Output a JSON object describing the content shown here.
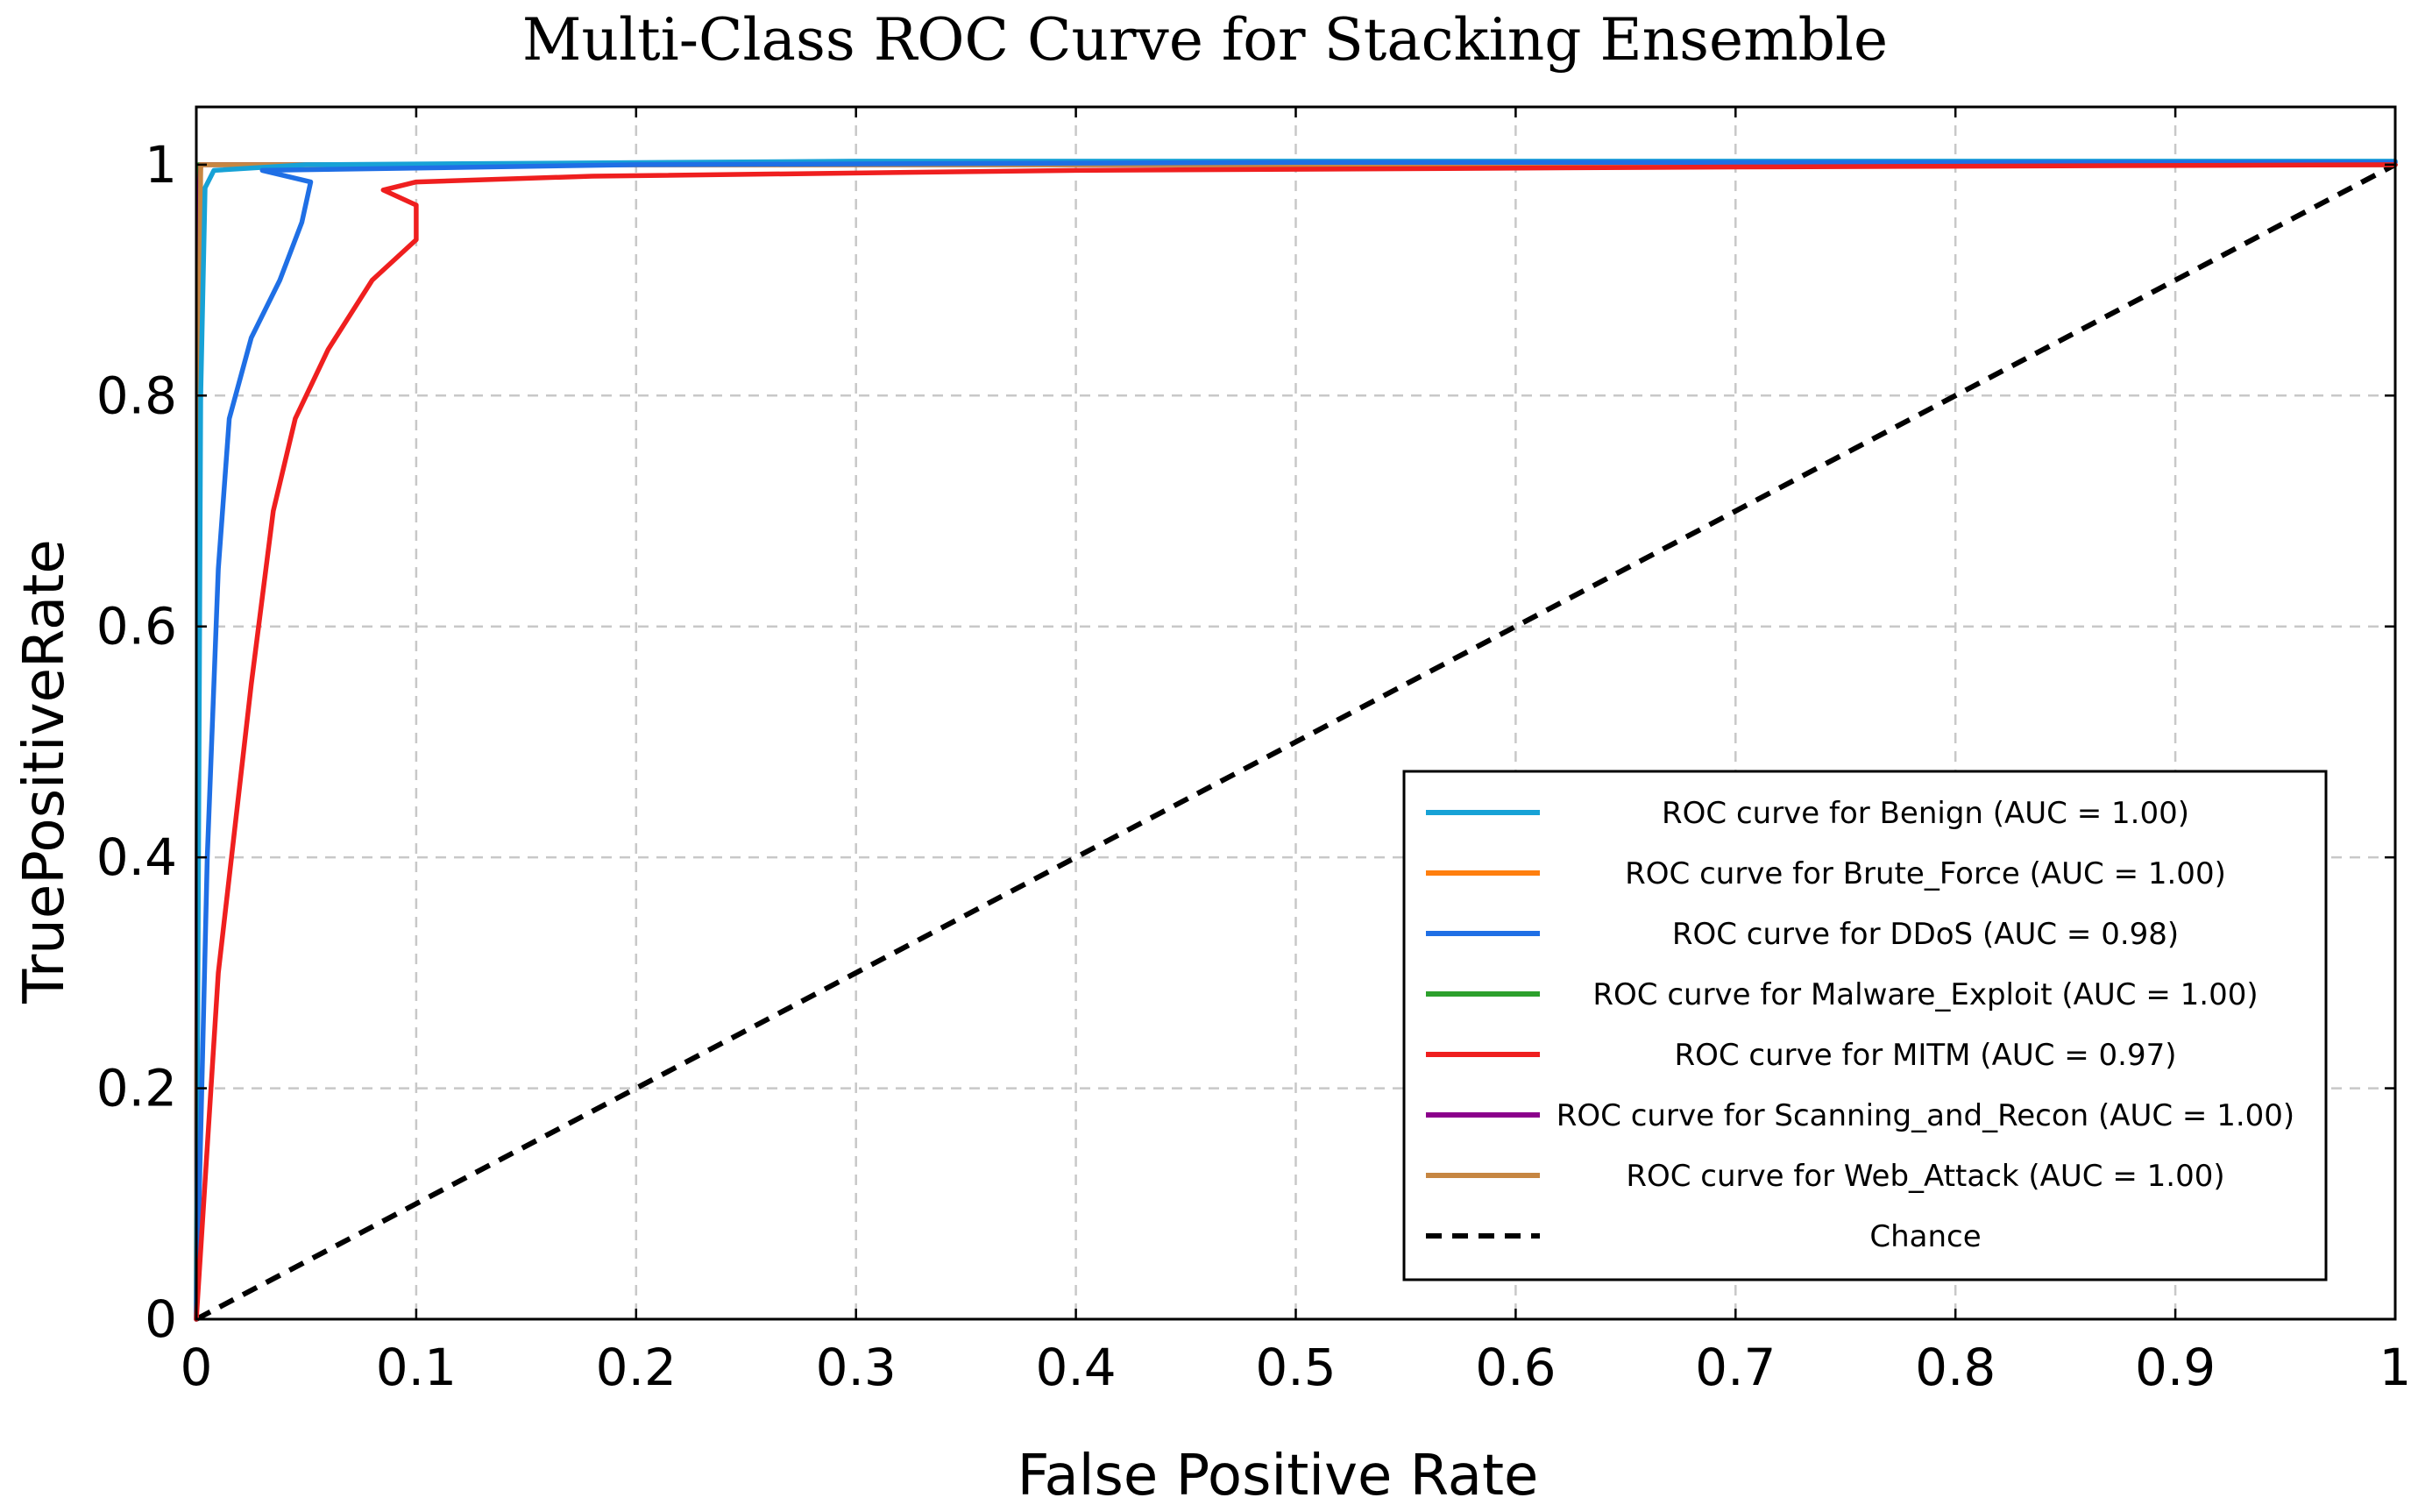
{
  "chart_data": {
    "type": "line",
    "title": "Multi-Class ROC Curve for Stacking Ensemble",
    "xlabel": "False Positive Rate",
    "ylabel": "TruePositiveRate",
    "xlim": [
      0,
      1
    ],
    "ylim": [
      0,
      1.05
    ],
    "grid": true,
    "legend_position": "lower-right",
    "x_ticks": [
      {
        "value": 0,
        "label": "0"
      },
      {
        "value": 0.1,
        "label": "0.1"
      },
      {
        "value": 0.2,
        "label": "0.2"
      },
      {
        "value": 0.3,
        "label": "0.3"
      },
      {
        "value": 0.4,
        "label": "0.4"
      },
      {
        "value": 0.5,
        "label": "0.5"
      },
      {
        "value": 0.6,
        "label": "0.6"
      },
      {
        "value": 0.7,
        "label": "0.7"
      },
      {
        "value": 0.8,
        "label": "0.8"
      },
      {
        "value": 0.9,
        "label": "0.9"
      },
      {
        "value": 1,
        "label": "1"
      }
    ],
    "y_ticks": [
      {
        "value": 0,
        "label": "0"
      },
      {
        "value": 0.2,
        "label": "0.2"
      },
      {
        "value": 0.4,
        "label": "0.4"
      },
      {
        "value": 0.6,
        "label": "0.6"
      },
      {
        "value": 0.8,
        "label": "0.8"
      },
      {
        "value": 1,
        "label": "1"
      }
    ],
    "series": [
      {
        "name": "ROC curve for Benign (AUC = 1.00)",
        "color": "#17a2d6",
        "dashed": false,
        "points": [
          [
            0,
            0
          ],
          [
            0.002,
            0.8
          ],
          [
            0.004,
            0.98
          ],
          [
            0.008,
            0.995
          ],
          [
            0.05,
            1.0
          ],
          [
            0.3,
            1.003
          ],
          [
            0.65,
            1.003
          ],
          [
            0.95,
            1.003
          ],
          [
            1,
            1.003
          ]
        ]
      },
      {
        "name": "ROC curve for Brute_Force (AUC = 1.00)",
        "color": "#ff7f0e",
        "dashed": false,
        "points": [
          [
            0,
            0
          ],
          [
            0.001,
            0.9
          ],
          [
            0.002,
            1.0
          ],
          [
            0.3,
            1.0
          ],
          [
            1,
            1.0
          ]
        ]
      },
      {
        "name": "ROC curve for DDoS (AUC = 0.98)",
        "color": "#1f6fe5",
        "dashed": false,
        "points": [
          [
            0,
            0
          ],
          [
            0.005,
            0.4
          ],
          [
            0.01,
            0.65
          ],
          [
            0.015,
            0.78
          ],
          [
            0.025,
            0.85
          ],
          [
            0.038,
            0.9
          ],
          [
            0.048,
            0.95
          ],
          [
            0.052,
            0.985
          ],
          [
            0.03,
            0.995
          ],
          [
            0.2,
            1.0
          ],
          [
            0.5,
            1.002
          ],
          [
            1,
            1.002
          ]
        ]
      },
      {
        "name": "ROC curve for Malware_Exploit (AUC = 1.00)",
        "color": "#2ca02c",
        "dashed": false,
        "points": [
          [
            0,
            0
          ],
          [
            0.001,
            1.0
          ],
          [
            1,
            1.0
          ]
        ]
      },
      {
        "name": "ROC curve for MITM (AUC = 0.97)",
        "color": "#ef1f1f",
        "dashed": false,
        "points": [
          [
            0,
            0
          ],
          [
            0.01,
            0.3
          ],
          [
            0.025,
            0.55
          ],
          [
            0.035,
            0.7
          ],
          [
            0.045,
            0.78
          ],
          [
            0.06,
            0.84
          ],
          [
            0.08,
            0.9
          ],
          [
            0.1,
            0.935
          ],
          [
            0.1,
            0.965
          ],
          [
            0.085,
            0.978
          ],
          [
            0.1,
            0.985
          ],
          [
            0.18,
            0.99
          ],
          [
            0.4,
            0.995
          ],
          [
            0.7,
            0.998
          ],
          [
            1,
            1.0
          ]
        ]
      },
      {
        "name": "ROC curve for Scanning_and_Recon (AUC = 1.00)",
        "color": "#8b008b",
        "dashed": false,
        "points": [
          [
            0,
            0
          ],
          [
            0.001,
            0.95
          ],
          [
            0.002,
            1.0
          ],
          [
            1,
            1.0
          ]
        ]
      },
      {
        "name": "ROC curve for Web_Attack (AUC = 1.00)",
        "color": "#c68642",
        "dashed": false,
        "points": [
          [
            0,
            0
          ],
          [
            0.001,
            0.7
          ],
          [
            0.002,
            1.0
          ],
          [
            1,
            1.0
          ]
        ]
      },
      {
        "name": "Chance",
        "color": "#000000",
        "dashed": true,
        "points": [
          [
            0,
            0
          ],
          [
            1,
            1
          ]
        ]
      }
    ]
  }
}
